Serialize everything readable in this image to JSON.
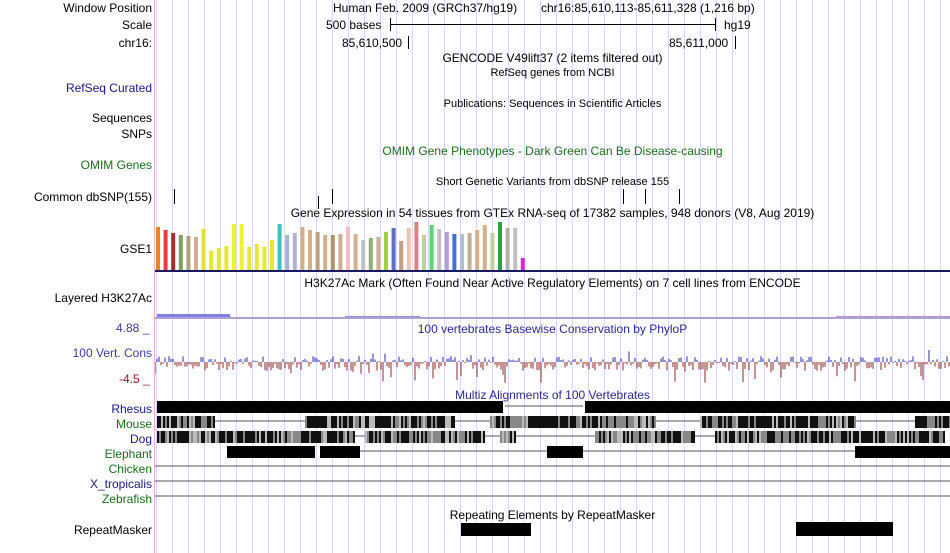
{
  "header": {
    "window_position_label": "Window Position",
    "scale_label": "Scale",
    "chrom_label": "chr16:",
    "assembly_title": "Human Feb. 2009 (GRCh37/hg19)",
    "position_range": "chr16:85,610,113-85,611,328 (1,216 bp)",
    "scale_text": "500 bases",
    "scale_assembly": "hg19",
    "coord_left": "85,610,500",
    "coord_right": "85,611,000"
  },
  "tracks": {
    "gencode_title": "GENCODE V49lift37 (2 items filtered out)",
    "refseq_label": "RefSeq Curated",
    "refseq_title": "RefSeq genes from NCBI",
    "sequences_label": "Sequences",
    "sequences_title": "Publications: Sequences in Scientific Articles",
    "snps_label": "SNPs",
    "omim_label": "OMIM Genes",
    "omim_title": "OMIM Gene Phenotypes - Dark Green Can Be Disease-causing",
    "dbsnp_label": "Common dbSNP(155)",
    "dbsnp_title": "Short Genetic Variants from dbSNP release 155",
    "gtex_title": "Gene Expression in 54 tissues from GTEx RNA-seq of 17382 samples, 948 donors (V8, Aug 2019)",
    "gse_label": "GSE1",
    "h3k27ac_label": "Layered H3K27Ac",
    "h3k27ac_title": "H3K27Ac Mark (Often Found Near Active Regulatory Elements) on 7 cell lines from ENCODE",
    "cons_label": "100 Vert. Cons",
    "cons_max": "4.88 _",
    "cons_min": "-4.5 _",
    "cons_title": "100 vertebrates Basewise Conservation by PhyloP",
    "multiz_title": "Multiz Alignments of 100 Vertebrates",
    "species": [
      {
        "name": "Rhesus",
        "color": "#1a1a80"
      },
      {
        "name": "Mouse",
        "color": "#1f6b1f"
      },
      {
        "name": "Dog",
        "color": "#1a1a80"
      },
      {
        "name": "Elephant",
        "color": "#1f6b1f"
      },
      {
        "name": "Chicken",
        "color": "#1f6b1f"
      },
      {
        "name": "X_tropicalis",
        "color": "#1a1a80"
      },
      {
        "name": "Zebrafish",
        "color": "#1f6b1f"
      }
    ],
    "repeat_label": "RepeatMasker",
    "repeat_title": "Repeating Elements by RepeatMasker"
  },
  "colors": {
    "refseq": "#1a1a80",
    "omim": "#1f6b1f",
    "cons_label": "#3b3b9a",
    "cons_min": "#8b2020",
    "cons_pos": "#2a2ab0",
    "cons_neg": "#8b2a2a"
  },
  "chart_data": {
    "type": "bar",
    "title": "Gene Expression in 54 tissues from GTEx RNA-seq of 17382 samples, 948 donors (V8, Aug 2019)",
    "values": [
      43,
      40,
      37,
      35,
      34,
      33,
      41,
      19,
      22,
      24,
      46,
      46,
      23,
      26,
      23,
      30,
      46,
      35,
      37,
      43,
      40,
      38,
      35,
      35,
      36,
      43,
      36,
      30,
      32,
      33,
      38,
      42,
      29,
      42,
      48,
      35,
      45,
      41,
      38,
      36,
      36,
      37,
      40,
      45,
      37,
      48,
      42,
      42,
      12
    ],
    "colors": [
      "#f08030",
      "#e04040",
      "#a03030",
      "#80a060",
      "#b0a080",
      "#d0b090",
      "#e0e030",
      "#e8e830",
      "#e8e830",
      "#e8e830",
      "#f0f030",
      "#f0f030",
      "#e8e830",
      "#e8e830",
      "#e8e830",
      "#e8e830",
      "#40c0c0",
      "#a0b8d0",
      "#b0b0d0",
      "#d0b090",
      "#d0b090",
      "#b8a080",
      "#d0b090",
      "#b09070",
      "#c8b090",
      "#f0c0c0",
      "#d0b090",
      "#c0c0c0",
      "#90b070",
      "#d0b090",
      "#a0d040",
      "#6070c0",
      "#c0a080",
      "#f0c0b0",
      "#e08080",
      "#c0d0a0",
      "#60d070",
      "#c0c0c0",
      "#b0a0d0",
      "#4070d0",
      "#b0c0d0",
      "#c0b090",
      "#d0b090",
      "#d0b090",
      "#c0d0a0",
      "#30a040",
      "#b0b0b0",
      "#c0c0c0",
      "#e020e0"
    ]
  }
}
